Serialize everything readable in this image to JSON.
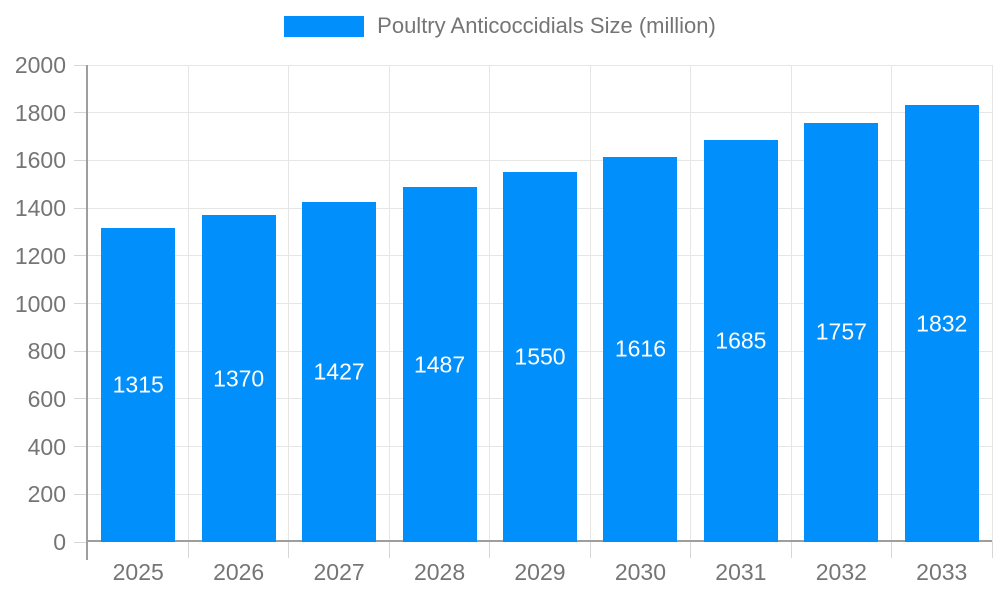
{
  "legend": {
    "label": "Poultry Anticoccidials Size (million)"
  },
  "chart_data": {
    "type": "bar",
    "title": "",
    "series_name": "Poultry Anticoccidials Size (million)",
    "categories": [
      "2025",
      "2026",
      "2027",
      "2028",
      "2029",
      "2030",
      "2031",
      "2032",
      "2033"
    ],
    "values": [
      1315,
      1370,
      1427,
      1487,
      1550,
      1616,
      1685,
      1757,
      1832
    ],
    "xlabel": "",
    "ylabel": "",
    "ylim": [
      0,
      2000
    ],
    "yticks": [
      0,
      200,
      400,
      600,
      800,
      1000,
      1200,
      1400,
      1600,
      1800,
      2000
    ],
    "grid": "horizontal-and-vertical",
    "legend_position": "top-center",
    "colors": {
      "bar": "#008FFB",
      "value_label": "#FFFFFF",
      "axis_text": "#757575",
      "gridline": "#E6E6E6",
      "tick": "#D6D6D6",
      "axis_line": "#9E9E9E",
      "background": "#FFFFFF"
    }
  }
}
